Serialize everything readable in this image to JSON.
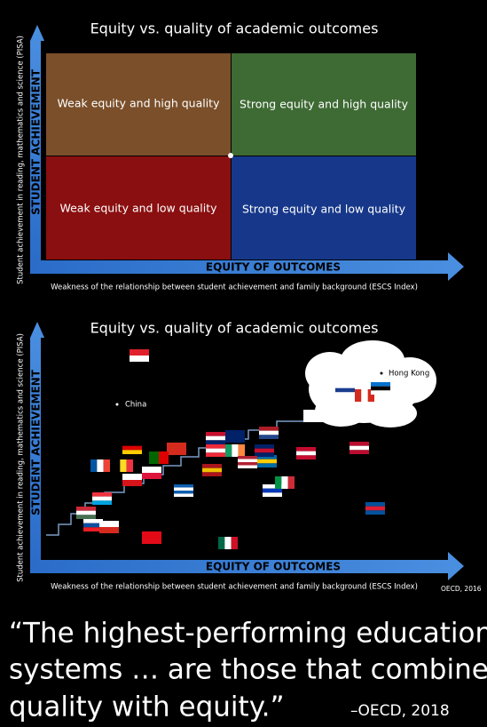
{
  "panel1": {
    "title": "Equity vs. quality of academic outcomes",
    "y_axis_label": "STUDENT ACHIEVEMENT",
    "y_axis_note": "Student achievement in reading, mathematics and science (PISA)",
    "x_axis_label": "EQUITY OF OUTCOMES",
    "x_axis_note": "Weakness of the relationship between student achievement and family background (ESCS Index)",
    "quadrants": [
      "Weak equity and high quality",
      "Strong equity and high quality",
      "Weak equity and low quality",
      "Strong equity and low quality"
    ]
  },
  "panel2": {
    "title": "Equity vs. quality of academic outcomes",
    "y_axis_label": "STUDENT ACHIEVEMENT",
    "y_axis_note": "Student achievement in reading, mathematics and science (PISA)",
    "x_axis_label": "EQUITY OF OUTCOMES",
    "x_axis_note": "Weakness of the relationship between student achievement and family background (ESCS Index)",
    "labels": [
      "China",
      "Hong Kong"
    ],
    "source": "OECD, 2016"
  },
  "quote": {
    "lines": [
      "“The highest-performing education",
      "systems … are those that combine",
      "quality with equity.”"
    ],
    "attribution": "–OECD, 2018"
  }
}
